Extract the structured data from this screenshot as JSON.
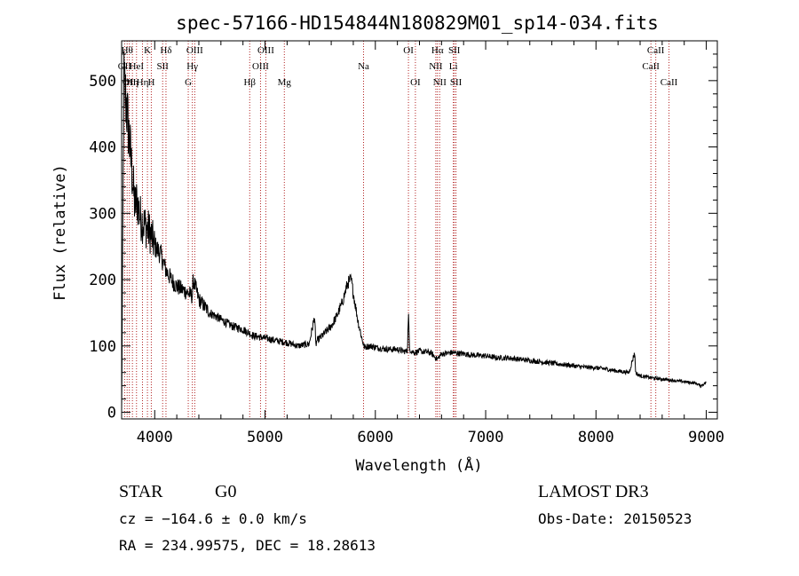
{
  "chart_data": {
    "type": "line",
    "title": "spec-57166-HD154844N180829M01_sp14-034.fits",
    "xlabel": "Wavelength (Å)",
    "ylabel": "Flux (relative)",
    "xlim": [
      3700,
      9100
    ],
    "ylim": [
      -10,
      560
    ],
    "xticks": [
      4000,
      5000,
      6000,
      7000,
      8000,
      9000
    ],
    "yticks": [
      0,
      100,
      200,
      300,
      400,
      500
    ],
    "grid": false,
    "series": [
      {
        "name": "flux",
        "x": [
          3700,
          3720,
          3740,
          3760,
          3780,
          3800,
          3820,
          3840,
          3860,
          3880,
          3900,
          3920,
          3940,
          3960,
          3980,
          4000,
          4050,
          4100,
          4150,
          4200,
          4250,
          4300,
          4340,
          4350,
          4400,
          4450,
          4500,
          4600,
          4700,
          4800,
          4900,
          5000,
          5100,
          5200,
          5300,
          5400,
          5450,
          5460,
          5470,
          5500,
          5600,
          5650,
          5700,
          5750,
          5780,
          5800,
          5820,
          5840,
          5860,
          5880,
          5900,
          5950,
          6000,
          6100,
          6200,
          6250,
          6290,
          6300,
          6310,
          6350,
          6400,
          6500,
          6560,
          6600,
          6700,
          6800,
          6900,
          7000,
          7100,
          7200,
          7300,
          7400,
          7500,
          7600,
          7700,
          7800,
          7900,
          8000,
          8100,
          8200,
          8300,
          8350,
          8360,
          8370,
          8400,
          8500,
          8600,
          8700,
          8800,
          8900,
          8950,
          9000
        ],
        "values": [
          0,
          500,
          470,
          430,
          390,
          350,
          310,
          320,
          300,
          290,
          285,
          280,
          275,
          270,
          260,
          250,
          240,
          215,
          200,
          190,
          185,
          180,
          175,
          200,
          170,
          160,
          150,
          140,
          130,
          125,
          115,
          112,
          108,
          105,
          100,
          103,
          145,
          100,
          108,
          112,
          130,
          145,
          165,
          195,
          200,
          180,
          160,
          140,
          125,
          110,
          98,
          100,
          98,
          95,
          95,
          92,
          92,
          150,
          95,
          90,
          92,
          90,
          80,
          88,
          90,
          88,
          86,
          85,
          82,
          82,
          80,
          78,
          76,
          74,
          72,
          70,
          68,
          67,
          65,
          62,
          60,
          90,
          60,
          58,
          55,
          52,
          50,
          48,
          46,
          44,
          40,
          45
        ]
      }
    ],
    "line_labels": [
      {
        "wl": 3727,
        "label": "OII",
        "row": 2
      },
      {
        "wl": 3750,
        "label": "Hθ",
        "row": 1
      },
      {
        "wl": 3770,
        "label": "OII",
        "row": 3
      },
      {
        "wl": 3798,
        "label": "Hη",
        "row": 3
      },
      {
        "wl": 3835,
        "label": "HeI",
        "row": 2
      },
      {
        "wl": 3889,
        "label": "Hη",
        "row": 3
      },
      {
        "wl": 3934,
        "label": "K",
        "row": 1
      },
      {
        "wl": 3969,
        "label": "H",
        "row": 3
      },
      {
        "wl": 4072,
        "label": "SII",
        "row": 2
      },
      {
        "wl": 4102,
        "label": "Hδ",
        "row": 1
      },
      {
        "wl": 4304,
        "label": "G",
        "row": 3
      },
      {
        "wl": 4341,
        "label": "Hγ",
        "row": 2
      },
      {
        "wl": 4363,
        "label": "OIII",
        "row": 1
      },
      {
        "wl": 4861,
        "label": "Hβ",
        "row": 3
      },
      {
        "wl": 4959,
        "label": "OIII",
        "row": 2
      },
      {
        "wl": 5007,
        "label": "OIII",
        "row": 1
      },
      {
        "wl": 5175,
        "label": "Mg",
        "row": 3
      },
      {
        "wl": 5893,
        "label": "Na",
        "row": 2
      },
      {
        "wl": 6300,
        "label": "OI",
        "row": 1
      },
      {
        "wl": 6363,
        "label": "OI",
        "row": 3
      },
      {
        "wl": 6548,
        "label": "NII",
        "row": 2
      },
      {
        "wl": 6563,
        "label": "Hα",
        "row": 1
      },
      {
        "wl": 6583,
        "label": "NII",
        "row": 3
      },
      {
        "wl": 6707,
        "label": "Li",
        "row": 2
      },
      {
        "wl": 6716,
        "label": "SII",
        "row": 1
      },
      {
        "wl": 6731,
        "label": "SII",
        "row": 3
      },
      {
        "wl": 8498,
        "label": "CaII",
        "row": 2
      },
      {
        "wl": 8542,
        "label": "CaII",
        "row": 1
      },
      {
        "wl": 8662,
        "label": "CaII",
        "row": 3
      }
    ]
  },
  "info": {
    "class_label": "STAR",
    "subclass": "G0",
    "survey": "LAMOST DR3",
    "cz_line": "cz = −164.6 ± 0.0 km/s",
    "obs_date": "Obs-Date: 20150523",
    "radec_line": "RA = 234.99575, DEC =  18.28613"
  }
}
